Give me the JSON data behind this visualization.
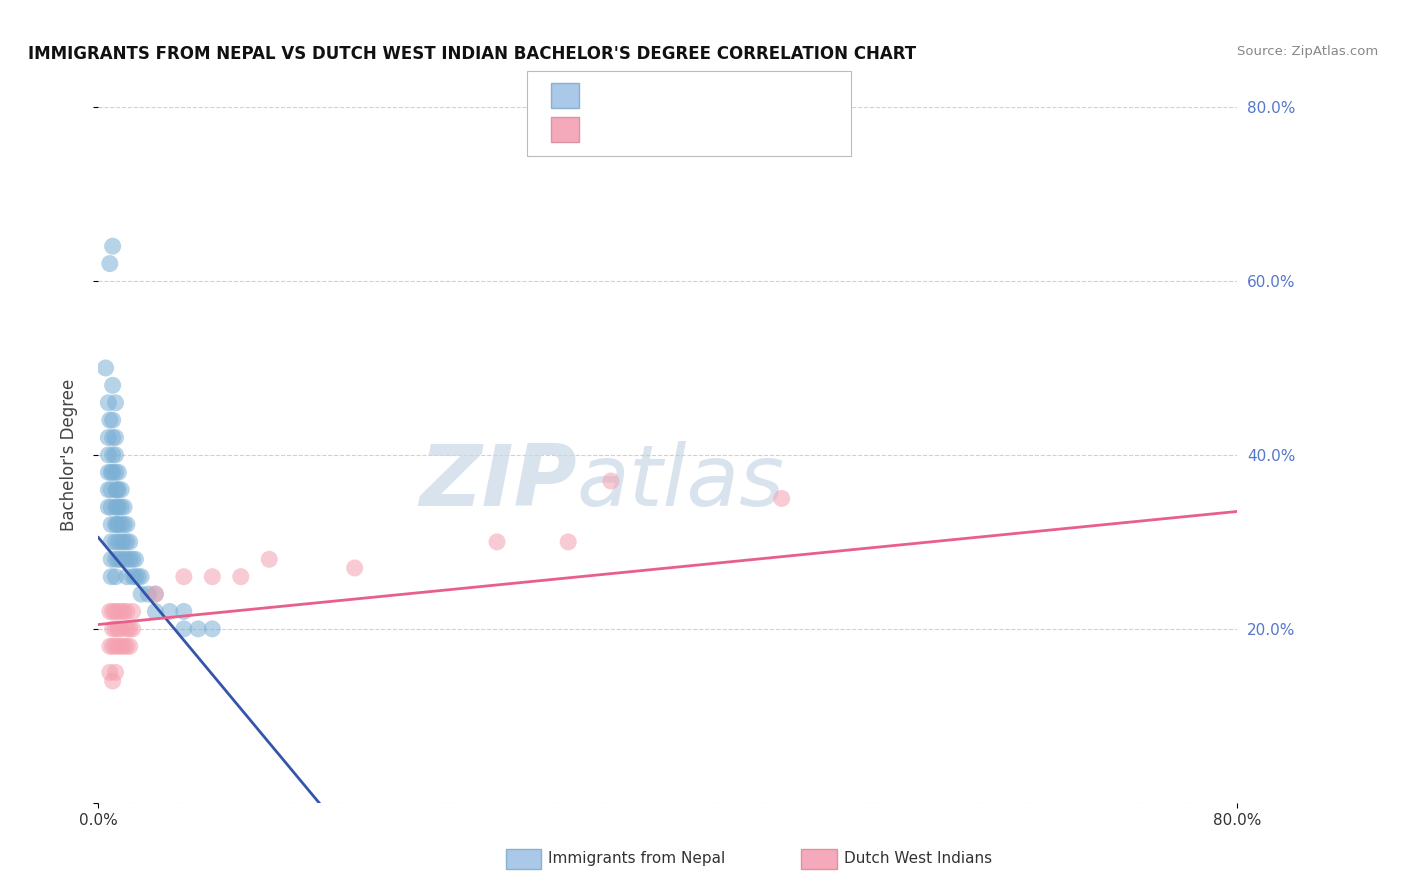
{
  "title": "IMMIGRANTS FROM NEPAL VS DUTCH WEST INDIAN BACHELOR'S DEGREE CORRELATION CHART",
  "source": "Source: ZipAtlas.com",
  "ylabel": "Bachelor's Degree",
  "xlim": [
    0.0,
    0.8
  ],
  "ylim": [
    0.0,
    0.8
  ],
  "yticks": [
    0.0,
    0.2,
    0.4,
    0.6,
    0.8
  ],
  "xticks": [
    0.0,
    0.8
  ],
  "background_color": "#ffffff",
  "grid_color": "#cccccc",
  "blue_color": "#7bafd4",
  "pink_color": "#f4a0b0",
  "blue_line_color": "#3355aa",
  "pink_line_color": "#e8608a",
  "watermark_zip": "ZIP",
  "watermark_atlas": "atlas",
  "blue_scatter": [
    [
      0.005,
      0.5
    ],
    [
      0.007,
      0.46
    ],
    [
      0.008,
      0.44
    ],
    [
      0.01,
      0.48
    ],
    [
      0.01,
      0.44
    ],
    [
      0.01,
      0.42
    ],
    [
      0.01,
      0.4
    ],
    [
      0.01,
      0.38
    ],
    [
      0.012,
      0.46
    ],
    [
      0.012,
      0.42
    ],
    [
      0.012,
      0.4
    ],
    [
      0.012,
      0.38
    ],
    [
      0.012,
      0.36
    ],
    [
      0.012,
      0.34
    ],
    [
      0.012,
      0.32
    ],
    [
      0.012,
      0.3
    ],
    [
      0.012,
      0.28
    ],
    [
      0.012,
      0.26
    ],
    [
      0.014,
      0.38
    ],
    [
      0.014,
      0.36
    ],
    [
      0.014,
      0.34
    ],
    [
      0.014,
      0.32
    ],
    [
      0.014,
      0.3
    ],
    [
      0.014,
      0.28
    ],
    [
      0.016,
      0.36
    ],
    [
      0.016,
      0.34
    ],
    [
      0.016,
      0.32
    ],
    [
      0.016,
      0.3
    ],
    [
      0.016,
      0.28
    ],
    [
      0.018,
      0.34
    ],
    [
      0.018,
      0.32
    ],
    [
      0.018,
      0.3
    ],
    [
      0.018,
      0.28
    ],
    [
      0.02,
      0.32
    ],
    [
      0.02,
      0.3
    ],
    [
      0.02,
      0.28
    ],
    [
      0.02,
      0.26
    ],
    [
      0.022,
      0.3
    ],
    [
      0.022,
      0.28
    ],
    [
      0.024,
      0.28
    ],
    [
      0.024,
      0.26
    ],
    [
      0.026,
      0.28
    ],
    [
      0.026,
      0.26
    ],
    [
      0.028,
      0.26
    ],
    [
      0.03,
      0.26
    ],
    [
      0.03,
      0.24
    ],
    [
      0.035,
      0.24
    ],
    [
      0.04,
      0.24
    ],
    [
      0.04,
      0.22
    ],
    [
      0.05,
      0.22
    ],
    [
      0.06,
      0.22
    ],
    [
      0.06,
      0.2
    ],
    [
      0.07,
      0.2
    ],
    [
      0.08,
      0.2
    ],
    [
      0.009,
      0.38
    ],
    [
      0.009,
      0.36
    ],
    [
      0.009,
      0.34
    ],
    [
      0.009,
      0.32
    ],
    [
      0.009,
      0.3
    ],
    [
      0.009,
      0.28
    ],
    [
      0.009,
      0.26
    ],
    [
      0.007,
      0.42
    ],
    [
      0.007,
      0.4
    ],
    [
      0.007,
      0.38
    ],
    [
      0.007,
      0.36
    ],
    [
      0.007,
      0.34
    ],
    [
      0.013,
      0.36
    ],
    [
      0.013,
      0.34
    ],
    [
      0.013,
      0.32
    ],
    [
      0.008,
      0.62
    ],
    [
      0.01,
      0.64
    ]
  ],
  "pink_scatter": [
    [
      0.008,
      0.22
    ],
    [
      0.01,
      0.22
    ],
    [
      0.01,
      0.2
    ],
    [
      0.012,
      0.22
    ],
    [
      0.012,
      0.2
    ],
    [
      0.014,
      0.22
    ],
    [
      0.014,
      0.2
    ],
    [
      0.016,
      0.22
    ],
    [
      0.016,
      0.2
    ],
    [
      0.018,
      0.22
    ],
    [
      0.02,
      0.22
    ],
    [
      0.02,
      0.2
    ],
    [
      0.022,
      0.2
    ],
    [
      0.024,
      0.2
    ],
    [
      0.024,
      0.22
    ],
    [
      0.008,
      0.18
    ],
    [
      0.01,
      0.18
    ],
    [
      0.012,
      0.18
    ],
    [
      0.014,
      0.18
    ],
    [
      0.016,
      0.18
    ],
    [
      0.018,
      0.18
    ],
    [
      0.02,
      0.18
    ],
    [
      0.022,
      0.18
    ],
    [
      0.04,
      0.24
    ],
    [
      0.06,
      0.26
    ],
    [
      0.08,
      0.26
    ],
    [
      0.1,
      0.26
    ],
    [
      0.12,
      0.28
    ],
    [
      0.18,
      0.27
    ],
    [
      0.28,
      0.3
    ],
    [
      0.33,
      0.3
    ],
    [
      0.36,
      0.37
    ],
    [
      0.48,
      0.35
    ],
    [
      0.008,
      0.15
    ],
    [
      0.01,
      0.14
    ],
    [
      0.012,
      0.15
    ]
  ],
  "blue_trend_x": [
    0.0,
    0.155
  ],
  "blue_trend_y": [
    0.305,
    0.0
  ],
  "pink_trend_x": [
    0.0,
    0.8
  ],
  "pink_trend_y": [
    0.205,
    0.335
  ]
}
